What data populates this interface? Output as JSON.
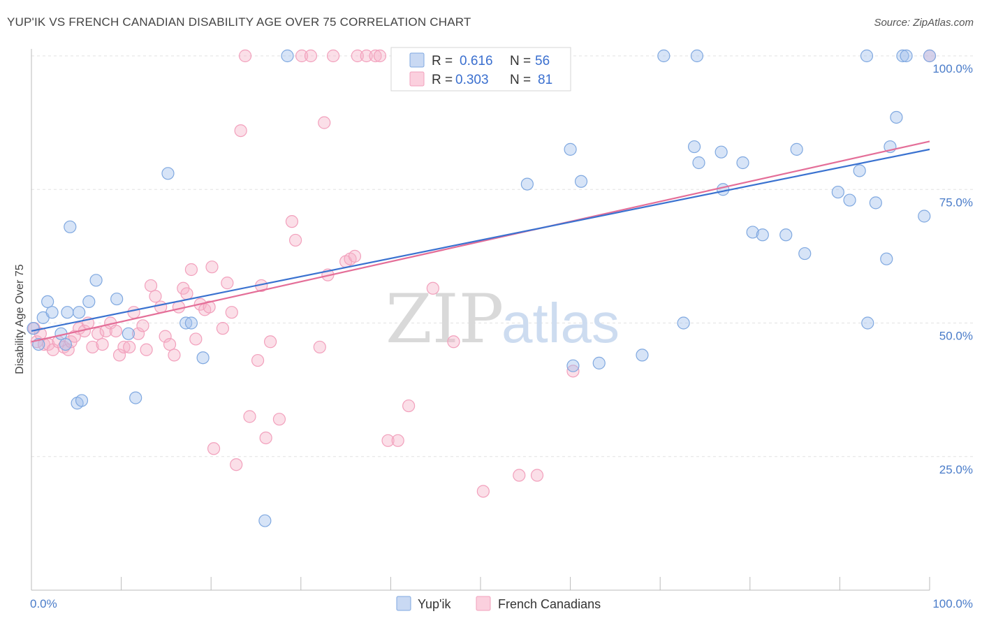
{
  "title": "YUP'IK VS FRENCH CANADIAN DISABILITY AGE OVER 75 CORRELATION CHART",
  "source": "Source: ZipAtlas.com",
  "watermark": {
    "part1": "ZIP",
    "part2": "atlas"
  },
  "legend_box": {
    "rows": [
      {
        "r_label": "R =",
        "r_value": "0.616",
        "n_label": "N =",
        "n_value": "56"
      },
      {
        "r_label": "R =",
        "r_value": "0.303",
        "n_label": "N =",
        "n_value": "81"
      }
    ]
  },
  "bottom_legend": [
    "Yup'ik",
    "French Canadians"
  ],
  "chart_data": {
    "type": "scatter",
    "title": "YUP'IK VS FRENCH CANADIAN DISABILITY AGE OVER 75 CORRELATION CHART",
    "xlabel": "",
    "ylabel": "Disability Age Over 75",
    "xlim": [
      0,
      100
    ],
    "ylim": [
      0,
      102
    ],
    "x_tick_labels": [
      "0.0%",
      "100.0%"
    ],
    "y_ticks": [
      25,
      50,
      75,
      100
    ],
    "y_tick_labels": [
      "25.0%",
      "50.0%",
      "75.0%",
      "100.0%"
    ],
    "grid": true,
    "legend_placement": "top-center",
    "colors": {
      "yupik": "#7fa8e0",
      "french": "#f2a0bc",
      "yupik_line": "#3a72d0",
      "french_line": "#e46e98",
      "tick": "#4a7cc9"
    },
    "series": [
      {
        "name": "Yup'ik",
        "r": 0.616,
        "n": 56,
        "trend": [
          [
            0,
            48.5
          ],
          [
            100,
            82.5
          ]
        ],
        "points": [
          [
            0.2,
            49
          ],
          [
            0.8,
            46
          ],
          [
            1.3,
            51
          ],
          [
            1.8,
            54
          ],
          [
            2.3,
            52
          ],
          [
            3.3,
            48
          ],
          [
            3.8,
            46
          ],
          [
            4.0,
            52
          ],
          [
            4.3,
            68
          ],
          [
            5.1,
            35
          ],
          [
            5.6,
            35.5
          ],
          [
            5.3,
            52
          ],
          [
            6.4,
            54
          ],
          [
            7.2,
            58
          ],
          [
            9.5,
            54.5
          ],
          [
            10.8,
            48
          ],
          [
            11.6,
            36
          ],
          [
            15.2,
            78
          ],
          [
            17.2,
            50
          ],
          [
            17.8,
            50
          ],
          [
            19.1,
            43.5
          ],
          [
            26.0,
            13
          ],
          [
            28.5,
            100
          ],
          [
            55.8,
            100
          ],
          [
            55.2,
            76
          ],
          [
            60.0,
            82.5
          ],
          [
            60.3,
            42
          ],
          [
            61.2,
            76.5
          ],
          [
            63.2,
            42.5
          ],
          [
            68.0,
            44
          ],
          [
            70.4,
            100
          ],
          [
            72.6,
            50
          ],
          [
            73.8,
            83
          ],
          [
            74.1,
            100
          ],
          [
            74.3,
            80
          ],
          [
            76.8,
            82
          ],
          [
            77.0,
            75
          ],
          [
            79.2,
            80
          ],
          [
            80.3,
            67
          ],
          [
            81.4,
            66.5
          ],
          [
            84.0,
            66.5
          ],
          [
            85.2,
            82.5
          ],
          [
            86.1,
            63
          ],
          [
            89.8,
            74.5
          ],
          [
            91.1,
            73
          ],
          [
            92.2,
            78.5
          ],
          [
            93.0,
            100
          ],
          [
            93.1,
            50
          ],
          [
            94.0,
            72.5
          ],
          [
            95.2,
            62
          ],
          [
            95.6,
            83
          ],
          [
            96.3,
            88.5
          ],
          [
            97.0,
            100
          ],
          [
            97.4,
            100
          ],
          [
            99.4,
            70
          ],
          [
            100.0,
            100
          ]
        ]
      },
      {
        "name": "French Canadians",
        "r": 0.303,
        "n": 81,
        "trend": [
          [
            0,
            46.5
          ],
          [
            100,
            84
          ]
        ],
        "points": [
          [
            0.3,
            49
          ],
          [
            0.6,
            46.5
          ],
          [
            1.0,
            48
          ],
          [
            1.4,
            46
          ],
          [
            1.9,
            46
          ],
          [
            2.4,
            45
          ],
          [
            3.0,
            46.5
          ],
          [
            3.6,
            45.5
          ],
          [
            4.1,
            45
          ],
          [
            4.4,
            46.5
          ],
          [
            4.8,
            47.5
          ],
          [
            5.3,
            49
          ],
          [
            5.9,
            48.5
          ],
          [
            6.3,
            50
          ],
          [
            6.8,
            45.5
          ],
          [
            7.4,
            48
          ],
          [
            7.9,
            46
          ],
          [
            8.3,
            48.5
          ],
          [
            8.8,
            50
          ],
          [
            9.4,
            48.5
          ],
          [
            9.8,
            44
          ],
          [
            10.3,
            45.5
          ],
          [
            10.9,
            45.5
          ],
          [
            11.4,
            52
          ],
          [
            11.9,
            48
          ],
          [
            12.4,
            49.5
          ],
          [
            12.8,
            45
          ],
          [
            13.3,
            57
          ],
          [
            13.8,
            55
          ],
          [
            14.4,
            53
          ],
          [
            14.9,
            47.5
          ],
          [
            15.4,
            46
          ],
          [
            15.9,
            44
          ],
          [
            16.4,
            53
          ],
          [
            16.9,
            56.5
          ],
          [
            17.3,
            55.5
          ],
          [
            17.8,
            60
          ],
          [
            18.3,
            47
          ],
          [
            18.8,
            53.5
          ],
          [
            19.3,
            52.5
          ],
          [
            19.8,
            53
          ],
          [
            20.1,
            60.5
          ],
          [
            20.3,
            26.5
          ],
          [
            21.3,
            49
          ],
          [
            21.8,
            57.5
          ],
          [
            22.3,
            52
          ],
          [
            22.8,
            23.5
          ],
          [
            23.3,
            86
          ],
          [
            23.8,
            100
          ],
          [
            24.3,
            32.5
          ],
          [
            25.2,
            43
          ],
          [
            25.6,
            57
          ],
          [
            26.1,
            28.5
          ],
          [
            26.6,
            46.5
          ],
          [
            27.6,
            32
          ],
          [
            29.0,
            69
          ],
          [
            29.4,
            65.5
          ],
          [
            30.1,
            100
          ],
          [
            31.1,
            100
          ],
          [
            32.1,
            45.5
          ],
          [
            32.6,
            87.5
          ],
          [
            33.0,
            59
          ],
          [
            33.6,
            100
          ],
          [
            35.0,
            61.5
          ],
          [
            35.5,
            62
          ],
          [
            36.0,
            62.5
          ],
          [
            36.3,
            100
          ],
          [
            37.3,
            100
          ],
          [
            38.3,
            100
          ],
          [
            38.8,
            100
          ],
          [
            39.7,
            28
          ],
          [
            40.8,
            28
          ],
          [
            42.0,
            34.5
          ],
          [
            44.7,
            56.5
          ],
          [
            47.0,
            46.5
          ],
          [
            50.3,
            18.5
          ],
          [
            54.3,
            21.5
          ],
          [
            56.3,
            21.5
          ],
          [
            57.1,
            100
          ],
          [
            60.3,
            41
          ],
          [
            100.0,
            100
          ]
        ]
      }
    ]
  }
}
